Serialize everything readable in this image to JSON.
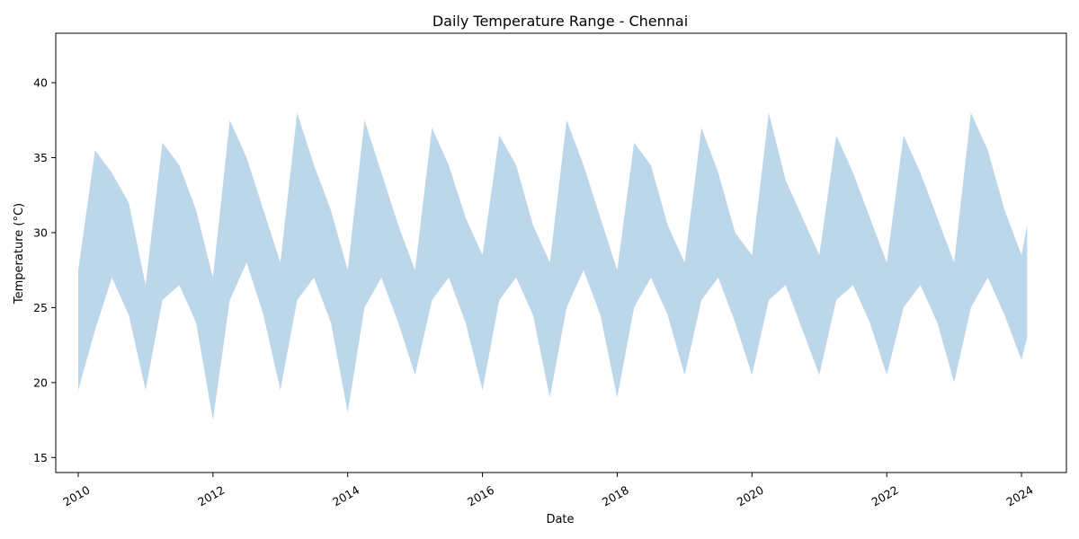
{
  "chart_data": {
    "type": "area",
    "title": "Daily Temperature Range - Chennai",
    "xlabel": "Date",
    "ylabel": "Temperature (°C)",
    "xlim": [
      "2009-09-01",
      "2024-09-01"
    ],
    "ylim": [
      14,
      43.3
    ],
    "x_ticks": [
      "2010",
      "2012",
      "2014",
      "2016",
      "2018",
      "2020",
      "2022",
      "2024"
    ],
    "y_ticks": [
      15,
      20,
      25,
      30,
      35,
      40
    ],
    "grid": false,
    "legend": "none",
    "fill_color": "#bdd7ea",
    "series": [
      {
        "x": [
          "2010-01",
          "2010-04",
          "2010-07",
          "2010-10",
          "2011-01",
          "2011-04",
          "2011-07",
          "2011-10",
          "2012-01",
          "2012-04",
          "2012-07",
          "2012-10",
          "2013-01",
          "2013-04",
          "2013-07",
          "2013-10",
          "2014-01",
          "2014-04",
          "2014-07",
          "2014-10",
          "2015-01",
          "2015-04",
          "2015-07",
          "2015-10",
          "2016-01",
          "2016-04",
          "2016-07",
          "2016-10",
          "2017-01",
          "2017-04",
          "2017-07",
          "2017-10",
          "2018-01",
          "2018-04",
          "2018-07",
          "2018-10",
          "2019-01",
          "2019-04",
          "2019-07",
          "2019-10",
          "2020-01",
          "2020-04",
          "2020-07",
          "2020-10",
          "2021-01",
          "2021-04",
          "2021-07",
          "2021-10",
          "2022-01",
          "2022-04",
          "2022-07",
          "2022-10",
          "2023-01",
          "2023-04",
          "2023-07",
          "2023-10",
          "2024-01",
          "2024-02"
        ],
        "low": [
          19.5,
          23.5,
          27.0,
          24.5,
          19.5,
          25.5,
          26.5,
          24.0,
          17.5,
          25.5,
          28.0,
          24.5,
          19.5,
          25.5,
          27.0,
          24.0,
          18.0,
          25.0,
          27.0,
          24.0,
          20.5,
          25.5,
          27.0,
          24.0,
          19.5,
          25.5,
          27.0,
          24.5,
          19.0,
          25.0,
          27.5,
          24.5,
          19.0,
          25.0,
          27.0,
          24.5,
          20.5,
          25.5,
          27.0,
          24.0,
          20.5,
          25.5,
          26.5,
          23.5,
          20.5,
          25.5,
          26.5,
          24.0,
          20.5,
          25.0,
          26.5,
          24.0,
          20.0,
          25.0,
          27.0,
          24.5,
          21.5,
          23.0
        ],
        "high": [
          27.5,
          35.5,
          34.0,
          32.0,
          26.5,
          36.0,
          34.5,
          31.5,
          27.0,
          37.5,
          35.0,
          31.5,
          28.0,
          38.0,
          34.5,
          31.5,
          27.5,
          37.5,
          34.0,
          30.5,
          27.5,
          37.0,
          34.5,
          31.0,
          28.5,
          36.5,
          34.5,
          30.5,
          28.0,
          37.5,
          34.5,
          31.0,
          27.5,
          36.0,
          34.5,
          30.5,
          28.0,
          37.0,
          34.0,
          30.0,
          28.5,
          38.0,
          33.5,
          31.0,
          28.5,
          36.5,
          34.0,
          31.0,
          28.0,
          36.5,
          34.0,
          31.0,
          28.0,
          38.0,
          35.5,
          31.5,
          28.5,
          30.5
        ]
      }
    ]
  }
}
